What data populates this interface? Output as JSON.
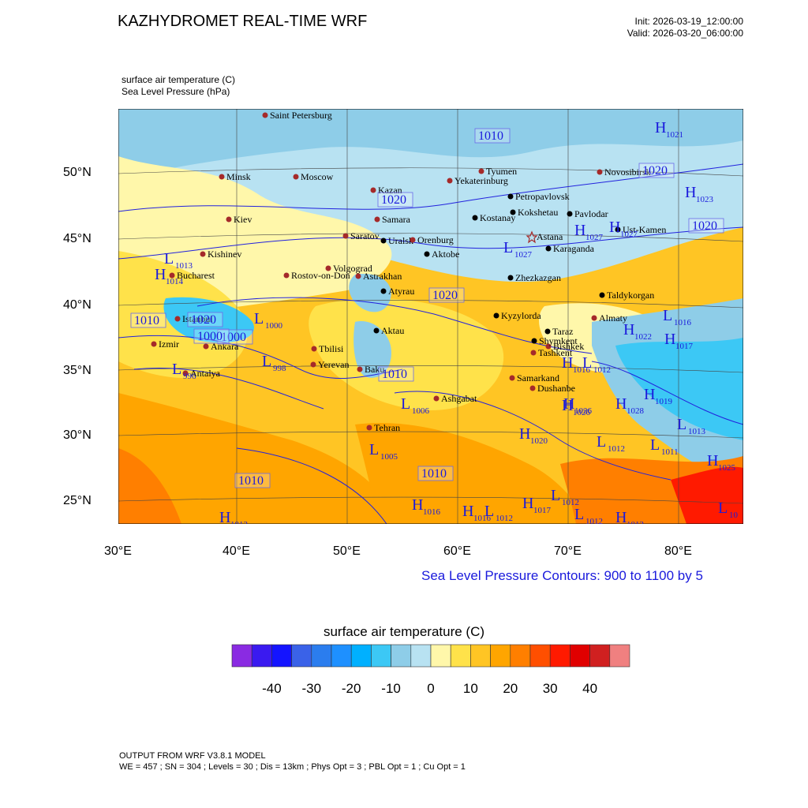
{
  "header": {
    "title": "KAZHYDROMET REAL-TIME WRF",
    "init": "Init: 2026-03-19_12:00:00",
    "valid": "Valid: 2026-03-20_06:00:00"
  },
  "fields": {
    "temperature_label": "surface air temperature   (C)",
    "pressure_label": "Sea Level Pressure   (hPa)"
  },
  "axes": {
    "lat_labels": [
      "50°N",
      "45°N",
      "40°N",
      "35°N",
      "30°N",
      "25°N"
    ],
    "lon_labels": [
      "30°E",
      "40°E",
      "50°E",
      "60°E",
      "70°E",
      "80°E"
    ]
  },
  "contour_note": "Sea Level Pressure Contours: 900 to 1100 by 5",
  "colorbar": {
    "title": "surface air temperature  (C)",
    "labels": [
      "-40",
      "-30",
      "-20",
      "-10",
      "0",
      "10",
      "20",
      "30",
      "40"
    ],
    "colors": [
      "#8a2be2",
      "#3a1af0",
      "#1414ff",
      "#3a62e8",
      "#2b7dee",
      "#1e90ff",
      "#00b0ff",
      "#3cc8f5",
      "#8ecde8",
      "#b8e2f2",
      "#fff7aa",
      "#ffe24a",
      "#ffc524",
      "#ffa500",
      "#ff7f00",
      "#ff4f00",
      "#ff1a00",
      "#e00000",
      "#d02020",
      "#f08080"
    ]
  },
  "cities": [
    {
      "name": "Saint Petersburg",
      "color": "#a52a2a"
    },
    {
      "name": "Minsk",
      "color": "#a52a2a"
    },
    {
      "name": "Moscow",
      "color": "#a52a2a"
    },
    {
      "name": "Kazan",
      "color": "#a52a2a"
    },
    {
      "name": "Yekaterinburg",
      "color": "#a52a2a"
    },
    {
      "name": "Tyumen",
      "color": "#a52a2a"
    },
    {
      "name": "Novosibirsk",
      "color": "#a52a2a"
    },
    {
      "name": "Petropavlovsk",
      "color": "#000000"
    },
    {
      "name": "Kokshetau",
      "color": "#000000"
    },
    {
      "name": "Pavlodar",
      "color": "#000000"
    },
    {
      "name": "Kostanay",
      "color": "#000000"
    },
    {
      "name": "Astana",
      "color": "#a52a2a"
    },
    {
      "name": "Ust-Kamen",
      "color": "#000000"
    },
    {
      "name": "Karaganda",
      "color": "#000000"
    },
    {
      "name": "Kiev",
      "color": "#a52a2a"
    },
    {
      "name": "Samara",
      "color": "#a52a2a"
    },
    {
      "name": "Saratov",
      "color": "#a52a2a"
    },
    {
      "name": "Uralsk",
      "color": "#000000"
    },
    {
      "name": "Orenburg",
      "color": "#a52a2a"
    },
    {
      "name": "Aktobe",
      "color": "#000000"
    },
    {
      "name": "Kishinev",
      "color": "#a52a2a"
    },
    {
      "name": "Bucharest",
      "color": "#a52a2a"
    },
    {
      "name": "Rostov-on-Don",
      "color": "#a52a2a"
    },
    {
      "name": "Volgograd",
      "color": "#a52a2a"
    },
    {
      "name": "Astrakhan",
      "color": "#a52a2a"
    },
    {
      "name": "Atyrau",
      "color": "#000000"
    },
    {
      "name": "Zhezkazgan",
      "color": "#000000"
    },
    {
      "name": "Taldykorgan",
      "color": "#000000"
    },
    {
      "name": "Istanbul",
      "color": "#a52a2a"
    },
    {
      "name": "Izmir",
      "color": "#a52a2a"
    },
    {
      "name": "Ankara",
      "color": "#a52a2a"
    },
    {
      "name": "Aktau",
      "color": "#000000"
    },
    {
      "name": "Kyzylorda",
      "color": "#000000"
    },
    {
      "name": "Almaty",
      "color": "#a52a2a"
    },
    {
      "name": "Taraz",
      "color": "#000000"
    },
    {
      "name": "Bishkek",
      "color": "#a52a2a"
    },
    {
      "name": "Shymkent",
      "color": "#000000"
    },
    {
      "name": "Tashkent",
      "color": "#a52a2a"
    },
    {
      "name": "Tbilisi",
      "color": "#a52a2a"
    },
    {
      "name": "Yerevan",
      "color": "#a52a2a"
    },
    {
      "name": "Baku",
      "color": "#a52a2a"
    },
    {
      "name": "Antalya",
      "color": "#a52a2a"
    },
    {
      "name": "Samarkand",
      "color": "#a52a2a"
    },
    {
      "name": "Dushanbe",
      "color": "#a52a2a"
    },
    {
      "name": "Ashgabat",
      "color": "#a52a2a"
    },
    {
      "name": "Tehran",
      "color": "#a52a2a"
    }
  ],
  "pressure_labels": [
    "1010",
    "1020",
    "1020",
    "1020",
    "1020",
    "1020",
    "1010",
    "1000",
    "1000",
    "1010",
    "1010",
    "1010"
  ],
  "pressure_centers": [
    {
      "type": "H",
      "value": "1021"
    },
    {
      "type": "H",
      "value": "1023"
    },
    {
      "type": "H",
      "value": "1027"
    },
    {
      "type": "H",
      "value": "1027"
    },
    {
      "type": "L",
      "value": "1027"
    },
    {
      "type": "L",
      "value": "1013"
    },
    {
      "type": "H",
      "value": "1014"
    },
    {
      "type": "L",
      "value": "1000"
    },
    {
      "type": "L",
      "value": "998"
    },
    {
      "type": "L",
      "value": "996"
    },
    {
      "type": "L",
      "value": "1016"
    },
    {
      "type": "H",
      "value": "1017"
    },
    {
      "type": "H",
      "value": "1022"
    },
    {
      "type": "L",
      "value": "1012"
    },
    {
      "type": "H",
      "value": "1016"
    },
    {
      "type": "H",
      "value": "1026"
    },
    {
      "type": "H",
      "value": "1026"
    },
    {
      "type": "H",
      "value": "1028"
    },
    {
      "type": "H",
      "value": "1019"
    },
    {
      "type": "L",
      "value": "1013"
    },
    {
      "type": "L",
      "value": "1006"
    },
    {
      "type": "L",
      "value": "1005"
    },
    {
      "type": "H",
      "value": "1020"
    },
    {
      "type": "L",
      "value": "1012"
    },
    {
      "type": "L",
      "value": "1011"
    },
    {
      "type": "H",
      "value": "1025"
    },
    {
      "type": "H",
      "value": "1016"
    },
    {
      "type": "H",
      "value": "1016"
    },
    {
      "type": "L",
      "value": "1012"
    },
    {
      "type": "H",
      "value": "1017"
    },
    {
      "type": "L",
      "value": "1012"
    },
    {
      "type": "L",
      "value": "1012"
    },
    {
      "type": "H",
      "value": "1013"
    },
    {
      "type": "H",
      "value": "1013"
    },
    {
      "type": "L",
      "value": "10"
    }
  ],
  "footer": {
    "line1": "OUTPUT FROM WRF V3.8.1 MODEL",
    "line2": "WE = 457 ; SN = 304 ; Levels = 30 ; Dis = 13km ; Phys Opt = 3 ; PBL Opt = 1 ; Cu Opt = 1"
  }
}
